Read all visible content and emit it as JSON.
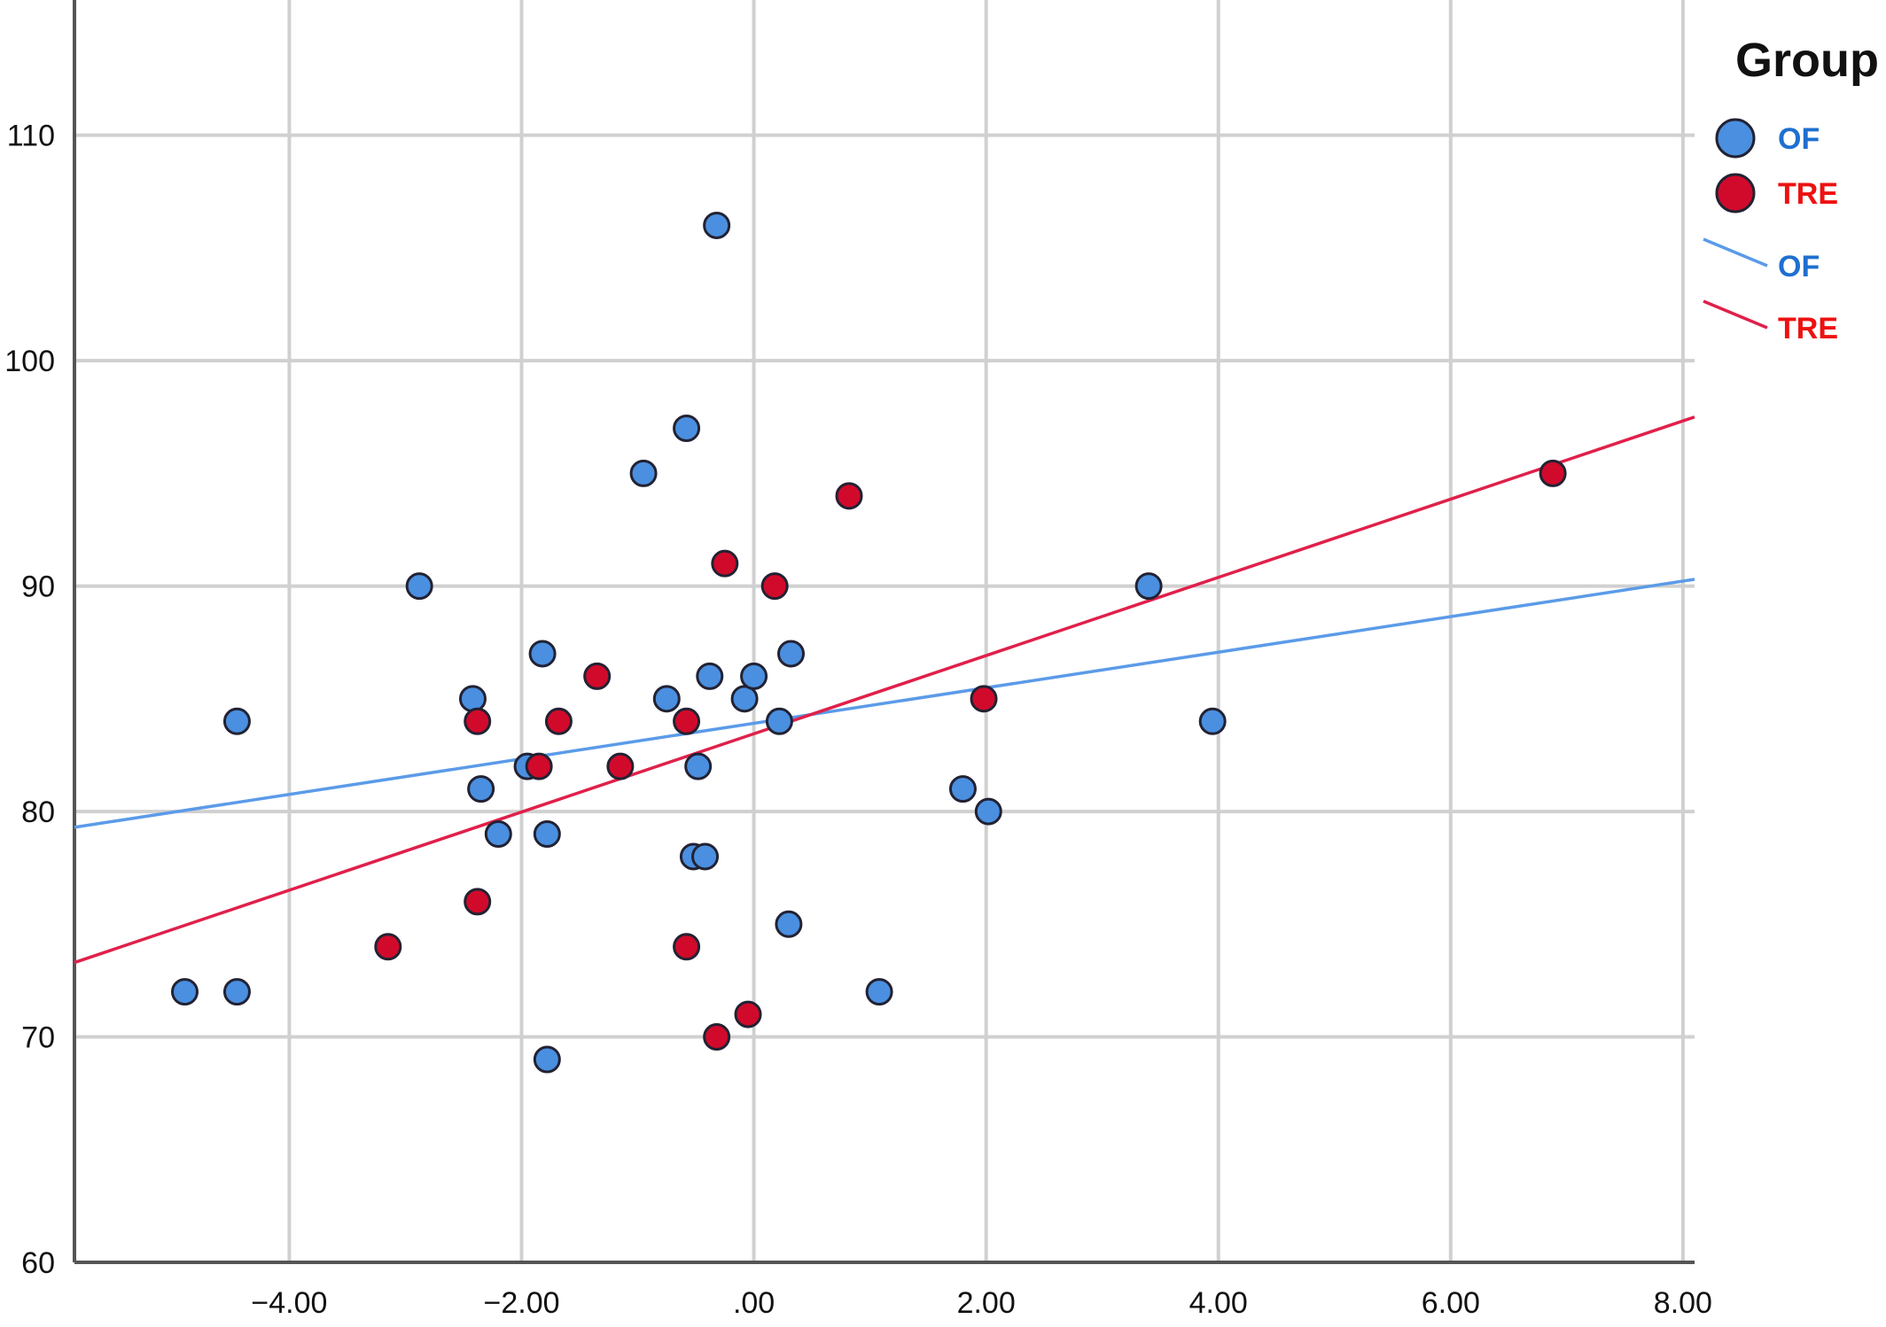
{
  "chart_data": {
    "type": "scatter",
    "title": "",
    "xlabel": "",
    "ylabel": "",
    "xlim": [
      -5.85,
      8.1
    ],
    "ylim": [
      60,
      116
    ],
    "x_ticks": [
      -4,
      -2,
      0,
      2,
      4,
      6,
      8
    ],
    "x_tick_labels": [
      "−4.00",
      "−2.00",
      ".00",
      "2.00",
      "4.00",
      "6.00",
      "8.00"
    ],
    "y_ticks": [
      60,
      70,
      80,
      90,
      100,
      110
    ],
    "y_tick_labels": [
      "60",
      "70",
      "80",
      "90",
      "100",
      "110"
    ],
    "grid": true,
    "legend": {
      "title": "Group",
      "position": "top-right",
      "entries": [
        {
          "label": "OF",
          "kind": "marker",
          "color": "#4a8fe0"
        },
        {
          "label": "TRE",
          "kind": "marker",
          "color": "#d10a2b"
        },
        {
          "label": "OF",
          "kind": "line",
          "color": "#5b9be8"
        },
        {
          "label": "TRE",
          "kind": "line",
          "color": "#e0204a"
        }
      ]
    },
    "series": [
      {
        "name": "OF",
        "color": "#4a8fe0",
        "label_color": "#1f6fd0",
        "points": [
          [
            -4.9,
            72
          ],
          [
            -4.45,
            72
          ],
          [
            -4.45,
            84
          ],
          [
            -2.88,
            90
          ],
          [
            -2.42,
            85
          ],
          [
            -2.35,
            81
          ],
          [
            -2.2,
            79
          ],
          [
            -1.95,
            82
          ],
          [
            -1.82,
            87
          ],
          [
            -1.78,
            79
          ],
          [
            -1.78,
            69
          ],
          [
            -0.95,
            95
          ],
          [
            -0.75,
            85
          ],
          [
            -0.58,
            97
          ],
          [
            -0.52,
            78
          ],
          [
            -0.48,
            82
          ],
          [
            -0.42,
            78
          ],
          [
            -0.38,
            86
          ],
          [
            -0.32,
            106
          ],
          [
            -0.08,
            85
          ],
          [
            0.0,
            86
          ],
          [
            0.22,
            84
          ],
          [
            0.3,
            75
          ],
          [
            0.32,
            87
          ],
          [
            1.08,
            72
          ],
          [
            1.8,
            81
          ],
          [
            2.02,
            80
          ],
          [
            3.4,
            90
          ],
          [
            3.95,
            84
          ]
        ],
        "fit_line": {
          "x": [
            -5.85,
            8.1
          ],
          "y": [
            79.3,
            90.3
          ]
        }
      },
      {
        "name": "TRE",
        "color": "#d10a2b",
        "label_color": "#ee1111",
        "points": [
          [
            -3.15,
            74
          ],
          [
            -2.38,
            84
          ],
          [
            -2.38,
            76
          ],
          [
            -1.85,
            82
          ],
          [
            -1.68,
            84
          ],
          [
            -1.35,
            86
          ],
          [
            -1.15,
            82
          ],
          [
            -0.58,
            84
          ],
          [
            -0.58,
            74
          ],
          [
            -0.32,
            70
          ],
          [
            -0.25,
            91
          ],
          [
            -0.05,
            71
          ],
          [
            0.18,
            90
          ],
          [
            0.82,
            94
          ],
          [
            1.98,
            85
          ],
          [
            6.88,
            95
          ]
        ],
        "fit_line": {
          "x": [
            -5.85,
            8.1
          ],
          "y": [
            73.3,
            97.5
          ]
        }
      }
    ]
  }
}
